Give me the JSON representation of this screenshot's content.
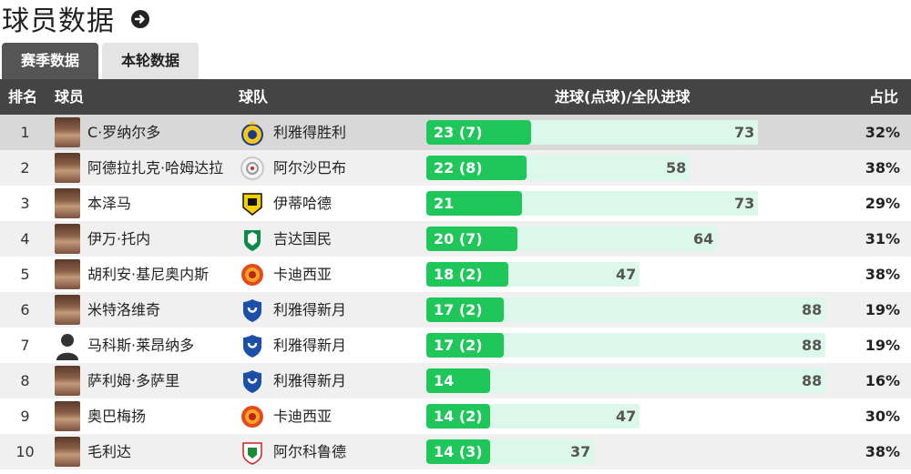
{
  "page": {
    "title": "球员数据"
  },
  "tabs": [
    {
      "label": "赛季数据",
      "active": true
    },
    {
      "label": "本轮数据",
      "active": false
    }
  ],
  "table": {
    "headers": {
      "rank": "排名",
      "player": "球员",
      "team": "球队",
      "goals": "进球(点球)/全队进球",
      "ratio": "占比"
    },
    "rows": [
      {
        "rank": "1",
        "player": "C·罗纳尔多",
        "team": "利雅得胜利",
        "goals_label": "23 (7)",
        "goals": 23,
        "team_goals": 73,
        "ratio": "32%",
        "logo": "al-nassr-logo"
      },
      {
        "rank": "2",
        "player": "阿德拉扎克·哈姆达拉",
        "team": "阿尔沙巴布",
        "goals_label": "22 (8)",
        "goals": 22,
        "team_goals": 58,
        "ratio": "38%",
        "logo": "al-shabab-logo"
      },
      {
        "rank": "3",
        "player": "本泽马",
        "team": "伊蒂哈德",
        "goals_label": "21",
        "goals": 21,
        "team_goals": 73,
        "ratio": "29%",
        "logo": "al-ittihad-logo"
      },
      {
        "rank": "4",
        "player": "伊万·托内",
        "team": "吉达国民",
        "goals_label": "20 (7)",
        "goals": 20,
        "team_goals": 64,
        "ratio": "31%",
        "logo": "al-ahli-logo"
      },
      {
        "rank": "5",
        "player": "胡利安·基尼奥内斯",
        "team": "卡迪西亚",
        "goals_label": "18 (2)",
        "goals": 18,
        "team_goals": 47,
        "ratio": "38%",
        "logo": "al-qadsiah-logo"
      },
      {
        "rank": "6",
        "player": "米特洛维奇",
        "team": "利雅得新月",
        "goals_label": "17 (2)",
        "goals": 17,
        "team_goals": 88,
        "ratio": "19%",
        "logo": "al-hilal-logo"
      },
      {
        "rank": "7",
        "player": "马科斯·莱昂纳多",
        "team": "利雅得新月",
        "goals_label": "17 (2)",
        "goals": 17,
        "team_goals": 88,
        "ratio": "19%",
        "logo": "al-hilal-logo"
      },
      {
        "rank": "8",
        "player": "萨利姆·多萨里",
        "team": "利雅得新月",
        "goals_label": "14",
        "goals": 14,
        "team_goals": 88,
        "ratio": "16%",
        "logo": "al-hilal-logo"
      },
      {
        "rank": "9",
        "player": "奥巴梅扬",
        "team": "卡迪西亚",
        "goals_label": "14 (2)",
        "goals": 14,
        "team_goals": 47,
        "ratio": "30%",
        "logo": "al-qadsiah-logo"
      },
      {
        "rank": "10",
        "player": "毛利达",
        "team": "阿尔科鲁德",
        "goals_label": "14 (3)",
        "goals": 14,
        "team_goals": 37,
        "ratio": "38%",
        "logo": "al-okhdood-logo"
      }
    ]
  },
  "colors": {
    "header_bg": "#444444",
    "tab_active": "#555555",
    "bar_goals": "#1fc65a",
    "bar_total": "#dcf8ea"
  },
  "icons": {
    "title_arrow": "circle-arrow-right-icon"
  }
}
